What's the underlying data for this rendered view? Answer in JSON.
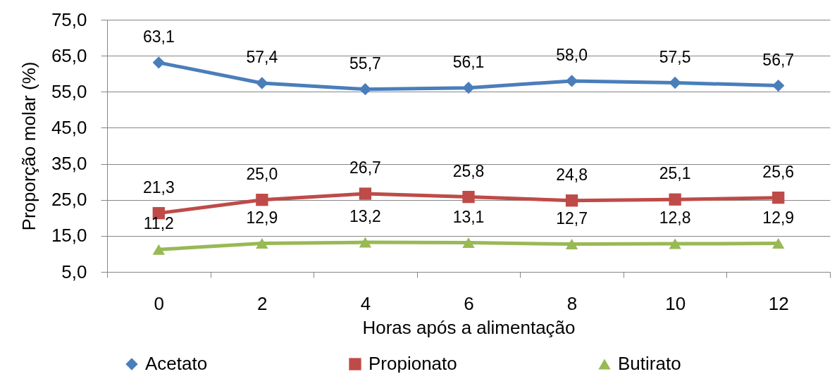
{
  "chart_data": {
    "type": "line",
    "xlabel": "Horas após a alimentação",
    "ylabel": "Proporção molar (%)",
    "categories": [
      "0",
      "2",
      "4",
      "6",
      "8",
      "10",
      "12"
    ],
    "series": [
      {
        "name": "Acetato",
        "color": "#4a7ebb",
        "marker": "diamond",
        "values": [
          63.1,
          57.4,
          55.7,
          56.1,
          58.0,
          57.5,
          56.7
        ],
        "value_labels": [
          "63,1",
          "57,4",
          "55,7",
          "56,1",
          "58,0",
          "57,5",
          "56,7"
        ]
      },
      {
        "name": "Propionato",
        "color": "#be4b48",
        "marker": "square",
        "values": [
          21.3,
          25.0,
          26.7,
          25.8,
          24.8,
          25.1,
          25.6
        ],
        "value_labels": [
          "21,3",
          "25,0",
          "26,7",
          "25,8",
          "24,8",
          "25,1",
          "25,6"
        ]
      },
      {
        "name": "Butirato",
        "color": "#98b954",
        "marker": "triangle",
        "values": [
          11.2,
          12.9,
          13.2,
          13.1,
          12.7,
          12.8,
          12.9
        ],
        "value_labels": [
          "11,2",
          "12,9",
          "13,2",
          "13,1",
          "12,7",
          "12,8",
          "12,9"
        ]
      }
    ],
    "ylim": [
      5,
      75
    ],
    "yticks": [
      {
        "value": 5,
        "label": "5,0"
      },
      {
        "value": 15,
        "label": "15,0"
      },
      {
        "value": 25,
        "label": "25,0"
      },
      {
        "value": 35,
        "label": "35,0"
      },
      {
        "value": 45,
        "label": "45,0"
      },
      {
        "value": 55,
        "label": "55,0"
      },
      {
        "value": 65,
        "label": "65,0"
      },
      {
        "value": 75,
        "label": "75,0"
      }
    ],
    "grid": "y",
    "legend": "bottom"
  }
}
